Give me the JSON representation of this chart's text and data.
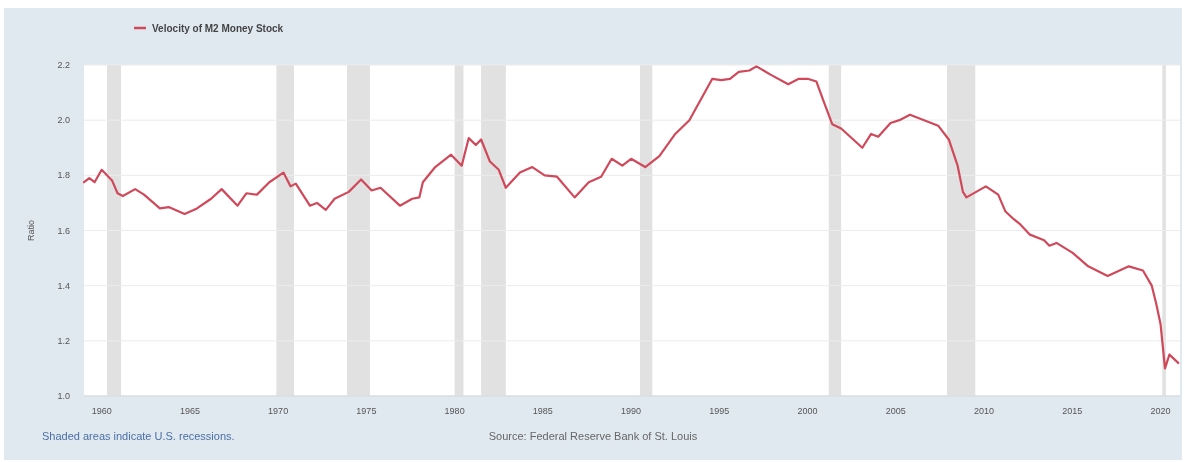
{
  "chart_data": {
    "type": "line",
    "ylabel": "Ratio",
    "legend": "top left",
    "grid": "y",
    "annotations": [
      "Shaded areas indicate U.S. recessions.",
      "Source: Federal Reserve Bank of St. Louis"
    ],
    "x": [
      1959.0,
      1959.3,
      1959.6,
      1960.0,
      1960.6,
      1960.9,
      1961.2,
      1961.9,
      1962.4,
      1963.3,
      1963.8,
      1964.7,
      1965.4,
      1966.2,
      1966.8,
      1967.7,
      1968.2,
      1968.8,
      1969.5,
      1970.3,
      1970.7,
      1971.0,
      1971.8,
      1972.2,
      1972.7,
      1973.2,
      1974.0,
      1974.7,
      1975.3,
      1975.8,
      1976.9,
      1977.6,
      1978.0,
      1978.2,
      1978.9,
      1979.8,
      1980.4,
      1980.8,
      1981.2,
      1981.5,
      1982.0,
      1982.5,
      1982.9,
      1983.7,
      1984.4,
      1985.1,
      1985.8,
      1986.8,
      1987.6,
      1988.3,
      1988.9,
      1989.5,
      1990.0,
      1990.8,
      1991.6,
      1992.5,
      1993.3,
      1994.6,
      1995.1,
      1995.6,
      1996.1,
      1996.7,
      1997.1,
      1997.9,
      1998.9,
      1999.5,
      2000.0,
      2000.5,
      2000.9,
      2001.4,
      2001.9,
      2003.1,
      2003.6,
      2004.0,
      2004.7,
      2005.2,
      2005.8,
      2006.6,
      2007.4,
      2008.0,
      2008.5,
      2008.8,
      2009.0,
      2010.1,
      2010.8,
      2011.2,
      2011.7,
      2012.0,
      2012.6,
      2013.4,
      2013.7,
      2014.1,
      2015.0,
      2015.9,
      2017.0,
      2018.2,
      2019.0,
      2019.5,
      2019.75,
      2020.0,
      2020.25,
      2020.5,
      2021.0
    ],
    "series": [
      {
        "name": "Velocity of M2 Money Stock",
        "color": "#d0495a",
        "values": [
          1.775,
          1.79,
          1.775,
          1.82,
          1.78,
          1.735,
          1.725,
          1.75,
          1.73,
          1.68,
          1.685,
          1.66,
          1.68,
          1.715,
          1.75,
          1.69,
          1.735,
          1.73,
          1.775,
          1.81,
          1.76,
          1.77,
          1.69,
          1.7,
          1.675,
          1.715,
          1.74,
          1.785,
          1.745,
          1.755,
          1.69,
          1.715,
          1.72,
          1.775,
          1.83,
          1.875,
          1.835,
          1.935,
          1.91,
          1.93,
          1.85,
          1.82,
          1.755,
          1.81,
          1.83,
          1.8,
          1.795,
          1.72,
          1.775,
          1.795,
          1.86,
          1.835,
          1.86,
          1.83,
          1.87,
          1.95,
          2.0,
          2.15,
          2.145,
          2.15,
          2.175,
          2.18,
          2.195,
          2.165,
          2.13,
          2.15,
          2.15,
          2.14,
          2.07,
          1.985,
          1.97,
          1.9,
          1.95,
          1.94,
          1.99,
          2.0,
          2.02,
          2.0,
          1.98,
          1.93,
          1.835,
          1.74,
          1.72,
          1.76,
          1.73,
          1.67,
          1.64,
          1.625,
          1.585,
          1.565,
          1.545,
          1.555,
          1.52,
          1.47,
          1.435,
          1.47,
          1.455,
          1.4,
          1.335,
          1.26,
          1.1,
          1.15,
          1.12
        ]
      }
    ],
    "xlim": [
      1959,
      2021.1
    ],
    "xticks": [
      1960,
      1965,
      1970,
      1975,
      1980,
      1985,
      1990,
      1995,
      2000,
      2005,
      2010,
      2015,
      2020
    ],
    "ylim": [
      1.0,
      2.2
    ],
    "yticks": [
      {
        "value": 1.0,
        "label": "1.0"
      },
      1.2,
      1.4,
      1.6,
      1.8,
      {
        "value": 2.0,
        "label": "2.0"
      },
      2.2
    ],
    "bands": [
      {
        "axis": "x",
        "from": 1960.3,
        "to": 1961.1,
        "color": "#e1e1e1"
      },
      {
        "axis": "x",
        "from": 1969.9,
        "to": 1970.9,
        "color": "#e1e1e1"
      },
      {
        "axis": "x",
        "from": 1973.9,
        "to": 1975.2,
        "color": "#e1e1e1"
      },
      {
        "axis": "x",
        "from": 1980.0,
        "to": 1980.5,
        "color": "#e1e1e1"
      },
      {
        "axis": "x",
        "from": 1981.5,
        "to": 1982.9,
        "color": "#e1e1e1"
      },
      {
        "axis": "x",
        "from": 1990.5,
        "to": 1991.2,
        "color": "#e1e1e1"
      },
      {
        "axis": "x",
        "from": 2001.2,
        "to": 2001.9,
        "color": "#e1e1e1"
      },
      {
        "axis": "x",
        "from": 2007.9,
        "to": 2009.5,
        "color": "#e1e1e1"
      },
      {
        "axis": "x",
        "from": 2020.1,
        "to": 2020.3,
        "color": "#e1e1e1"
      }
    ]
  }
}
